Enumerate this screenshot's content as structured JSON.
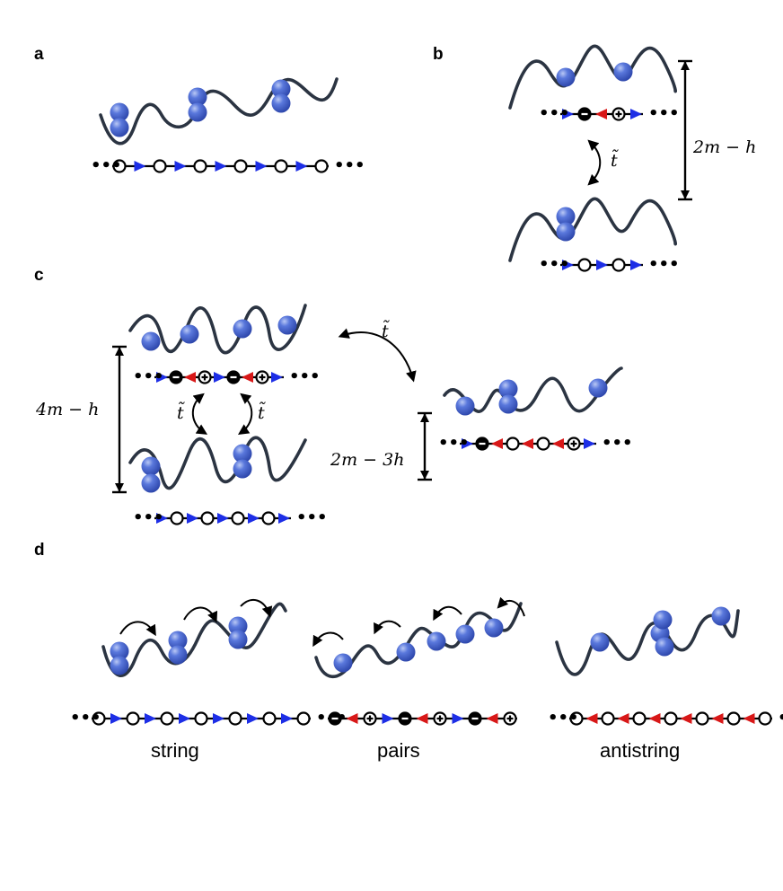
{
  "panels": {
    "a": {
      "label": "a"
    },
    "b": {
      "label": "b",
      "energy": "2m − h",
      "hop": "t̃"
    },
    "c": {
      "label": "c",
      "energy_left": "4m − h",
      "energy_right": "2m − 3h",
      "hop_top": "t̃",
      "hop_left": "t̃",
      "hop_right": "t̃"
    },
    "d": {
      "label": "d",
      "captions": [
        "string",
        "pairs",
        "antistring"
      ]
    }
  },
  "chains": {
    "a": {
      "items": [
        "o",
        "b",
        "o",
        "b",
        "o",
        "b",
        "o",
        "b",
        "o",
        "b",
        "o"
      ]
    },
    "b_top": {
      "items": [
        "b",
        "m",
        "r",
        "p",
        "b"
      ]
    },
    "b_bot": {
      "items": [
        "b",
        "o",
        "b",
        "o",
        "b"
      ]
    },
    "c_top": {
      "items": [
        "b",
        "m",
        "r",
        "p",
        "b",
        "m",
        "r",
        "p",
        "b"
      ]
    },
    "c_bot": {
      "items": [
        "b",
        "o",
        "b",
        "o",
        "b",
        "o",
        "b",
        "o",
        "b"
      ]
    },
    "c_right": {
      "items": [
        "b",
        "m",
        "r",
        "o",
        "r",
        "o",
        "r",
        "p",
        "b"
      ]
    },
    "d_string": {
      "items": [
        "o",
        "b",
        "o",
        "b",
        "o",
        "b",
        "o",
        "b",
        "o",
        "b",
        "o",
        "b",
        "o"
      ]
    },
    "d_pairs": {
      "items": [
        "m",
        "r",
        "p",
        "b",
        "m",
        "r",
        "p",
        "b",
        "m",
        "r",
        "p"
      ]
    },
    "d_anti": {
      "items": [
        "o",
        "r",
        "o",
        "r",
        "o",
        "r",
        "o",
        "r",
        "o",
        "r",
        "o",
        "r",
        "o"
      ]
    }
  },
  "colors": {
    "ball": "#5271d6",
    "ball_dark": "#2f4ab0",
    "wave": "#2b3442",
    "blue_arrow": "#1d2ee6",
    "red_arrow": "#d81818"
  },
  "legend_symbols": {
    "o": "empty site",
    "m": "minus charge",
    "p": "plus charge",
    "b": "blue link",
    "r": "red link"
  }
}
